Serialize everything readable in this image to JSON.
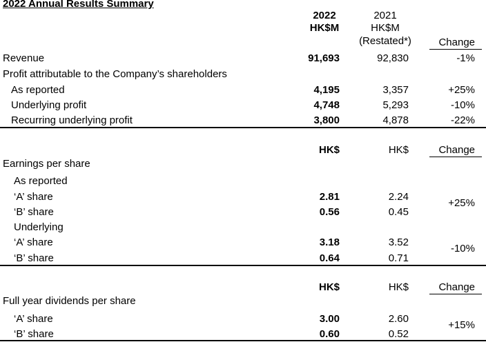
{
  "title": "2022 Annual Results Summary",
  "section1": {
    "col_2022_year": "2022",
    "col_2022_unit": "HK$M",
    "col_2021_year": "2021",
    "col_2021_unit": "HK$M",
    "col_2021_note": "(Restated*)",
    "col_change": "Change",
    "revenue_label": "Revenue",
    "revenue_2022": "91,693",
    "revenue_2021": "92,830",
    "revenue_change": "-1%",
    "profit_heading": "Profit attributable to the Company’s shareholders",
    "rows": [
      {
        "label": "As reported",
        "v2022": "4,195",
        "v2021": "3,357",
        "change": "+25%"
      },
      {
        "label": "Underlying profit",
        "v2022": "4,748",
        "v2021": "5,293",
        "change": "-10%"
      },
      {
        "label": "Recurring underlying profit",
        "v2022": "3,800",
        "v2021": "4,878",
        "change": "-22%"
      }
    ]
  },
  "section2": {
    "col_2022": "HK$",
    "col_2021": "HK$",
    "col_change": "Change",
    "heading": "Earnings per share",
    "as_reported_label": "As reported",
    "as_reported_a_label": "‘A’ share",
    "as_reported_a_2022": "2.81",
    "as_reported_a_2021": "2.24",
    "as_reported_b_label": "‘B’ share",
    "as_reported_b_2022": "0.56",
    "as_reported_b_2021": "0.45",
    "as_reported_change": "+25%",
    "underlying_label": "Underlying",
    "underlying_a_label": "‘A’ share",
    "underlying_a_2022": "3.18",
    "underlying_a_2021": "3.52",
    "underlying_b_label": "‘B’ share",
    "underlying_b_2022": "0.64",
    "underlying_b_2021": "0.71",
    "underlying_change": "-10%"
  },
  "section3": {
    "col_2022": "HK$",
    "col_2021": "HK$",
    "col_change": "Change",
    "heading": "Full year dividends per share",
    "a_label": "‘A’ share",
    "a_2022": "3.00",
    "a_2021": "2.60",
    "b_label": "‘B’ share",
    "b_2022": "0.60",
    "b_2021": "0.52",
    "change": "+15%"
  }
}
